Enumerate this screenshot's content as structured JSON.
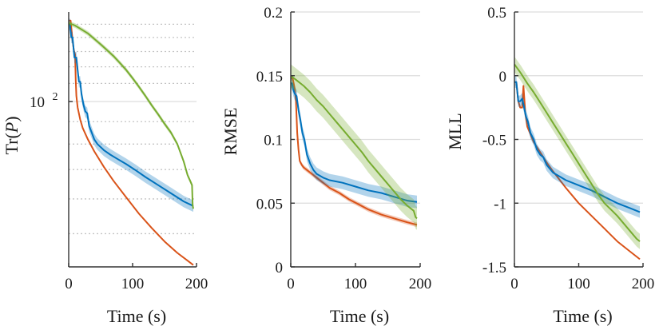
{
  "chart_data": [
    {
      "type": "line",
      "ylabel_prefix": "Tr(",
      "ylabel_var": "P",
      "ylabel_suffix": ")",
      "xlabel": "Time (s)",
      "xlim": [
        0,
        200
      ],
      "ylim": [
        42,
        160
      ],
      "yscale": "log",
      "xticks": [
        "0",
        "100",
        "200"
      ],
      "ytick_value": 100,
      "ytick_base": "10",
      "ytick_exp": "2",
      "minor_grid": [
        50,
        60,
        70,
        80,
        90,
        110,
        120,
        130,
        140,
        150
      ],
      "series": [
        {
          "color": "#d95319",
          "band": false,
          "x": [
            0,
            3,
            6,
            8,
            10,
            11,
            12,
            14,
            18,
            22,
            30,
            40,
            55,
            70,
            90,
            110,
            130,
            150,
            170,
            185,
            195
          ],
          "y": [
            153,
            153,
            138,
            131,
            128,
            112,
            103,
            97,
            91,
            87,
            82,
            77,
            71,
            66,
            60.5,
            55.5,
            51.5,
            48,
            45.2,
            43.5,
            42.4
          ]
        },
        {
          "color": "#0072bd",
          "band": true,
          "band_rel": 0.03,
          "x": [
            0,
            2,
            4,
            6,
            9,
            12,
            14,
            16,
            18,
            20,
            23,
            26,
            29,
            32,
            36,
            40,
            45,
            55,
            65,
            75,
            90,
            105,
            120,
            140,
            160,
            180,
            195
          ],
          "y": [
            150,
            150,
            140,
            140,
            126,
            126,
            118,
            111,
            111,
            104,
            98.5,
            95,
            94,
            88,
            85,
            82,
            80,
            77.5,
            75.7,
            74.2,
            72,
            69.7,
            67.3,
            64.5,
            61.8,
            59.2,
            57.8
          ]
        },
        {
          "color": "#77ac30",
          "band": true,
          "band_rel": 0.012,
          "x": [
            0,
            10,
            20,
            30,
            40,
            50,
            60,
            70,
            80,
            90,
            100,
            110,
            120,
            130,
            140,
            150,
            160,
            170,
            180,
            186,
            190,
            193,
            194,
            195
          ],
          "y": [
            151,
            149,
            146,
            143,
            139,
            135,
            131,
            127,
            122.5,
            118,
            113,
            108,
            103,
            98,
            93.5,
            89,
            85,
            80,
            73,
            68,
            66,
            64.5,
            58,
            57
          ]
        }
      ]
    },
    {
      "type": "line",
      "ylabel": "RMSE",
      "xlabel": "Time (s)",
      "xlim": [
        0,
        200
      ],
      "ylim": [
        0,
        0.2
      ],
      "xticks": [
        "0",
        "100",
        "200"
      ],
      "yticks": [
        0,
        0.05,
        0.1,
        0.15,
        0.2
      ],
      "ytick_labels": [
        "0",
        "0.05",
        "0.1",
        "0.15",
        "0.2"
      ],
      "series": [
        {
          "color": "#d95319",
          "band": true,
          "band_abs": 0.0018,
          "x": [
            0,
            3,
            6,
            8,
            10,
            12,
            14,
            17,
            20,
            25,
            30,
            40,
            50,
            60,
            75,
            90,
            105,
            120,
            140,
            160,
            180,
            195
          ],
          "y": [
            0.148,
            0.148,
            0.14,
            0.13,
            0.105,
            0.092,
            0.083,
            0.08,
            0.078,
            0.076,
            0.074,
            0.07,
            0.066,
            0.062,
            0.058,
            0.053,
            0.049,
            0.045,
            0.041,
            0.038,
            0.035,
            0.033
          ]
        },
        {
          "color": "#0072bd",
          "band": true,
          "band_abs": 0.005,
          "x": [
            0,
            2,
            4,
            6,
            9,
            12,
            15,
            18,
            21,
            25,
            30,
            35,
            40,
            50,
            60,
            80,
            100,
            120,
            140,
            160,
            180,
            195
          ],
          "y": [
            0.144,
            0.144,
            0.139,
            0.136,
            0.134,
            0.123,
            0.115,
            0.105,
            0.1,
            0.088,
            0.081,
            0.076,
            0.073,
            0.07,
            0.068,
            0.066,
            0.063,
            0.06,
            0.058,
            0.055,
            0.052,
            0.051
          ]
        },
        {
          "color": "#77ac30",
          "band": true,
          "band_abs": 0.009,
          "x": [
            0,
            10,
            20,
            30,
            40,
            50,
            60,
            70,
            80,
            90,
            100,
            110,
            120,
            130,
            140,
            150,
            160,
            170,
            180,
            190,
            193,
            195
          ],
          "y": [
            0.15,
            0.146,
            0.142,
            0.137,
            0.131,
            0.126,
            0.12,
            0.114,
            0.108,
            0.102,
            0.096,
            0.09,
            0.083,
            0.077,
            0.071,
            0.065,
            0.059,
            0.053,
            0.048,
            0.044,
            0.039,
            0.038
          ]
        }
      ]
    },
    {
      "type": "line",
      "ylabel": "MLL",
      "xlabel": "Time (s)",
      "xlim": [
        0,
        200
      ],
      "ylim": [
        -1.5,
        0.5
      ],
      "xticks": [
        "0",
        "100",
        "200"
      ],
      "yticks": [
        -1.5,
        -1,
        -0.5,
        0,
        0.5
      ],
      "ytick_labels": [
        "-1.5",
        "-1",
        "-0.5",
        "0",
        "0.5"
      ],
      "series": [
        {
          "color": "#d95319",
          "band": false,
          "x": [
            0,
            3,
            6,
            9,
            12,
            14,
            17,
            20,
            25,
            30,
            40,
            50,
            60,
            80,
            100,
            120,
            140,
            160,
            180,
            195
          ],
          "y": [
            -0.05,
            -0.05,
            -0.2,
            -0.25,
            -0.25,
            -0.08,
            -0.3,
            -0.4,
            -0.46,
            -0.52,
            -0.6,
            -0.68,
            -0.75,
            -0.88,
            -1.0,
            -1.1,
            -1.2,
            -1.3,
            -1.38,
            -1.44
          ]
        },
        {
          "color": "#0072bd",
          "band": true,
          "band_abs": 0.045,
          "x": [
            0,
            3,
            6,
            9,
            12,
            15,
            18,
            21,
            25,
            30,
            35,
            40,
            45,
            50,
            60,
            80,
            100,
            120,
            140,
            160,
            180,
            195
          ],
          "y": [
            -0.05,
            -0.05,
            -0.2,
            -0.2,
            -0.18,
            -0.25,
            -0.32,
            -0.36,
            -0.45,
            -0.5,
            -0.58,
            -0.62,
            -0.64,
            -0.7,
            -0.76,
            -0.82,
            -0.86,
            -0.9,
            -0.95,
            -1.0,
            -1.04,
            -1.07
          ]
        },
        {
          "color": "#77ac30",
          "band": true,
          "band_abs": 0.06,
          "x": [
            0,
            10,
            20,
            30,
            40,
            50,
            60,
            70,
            80,
            90,
            100,
            110,
            120,
            130,
            140,
            150,
            160,
            170,
            180,
            190,
            195
          ],
          "y": [
            0.09,
            0.02,
            -0.06,
            -0.13,
            -0.21,
            -0.29,
            -0.37,
            -0.45,
            -0.53,
            -0.61,
            -0.69,
            -0.77,
            -0.85,
            -0.93,
            -1.0,
            -1.05,
            -1.1,
            -1.16,
            -1.22,
            -1.28,
            -1.3
          ]
        }
      ]
    }
  ]
}
